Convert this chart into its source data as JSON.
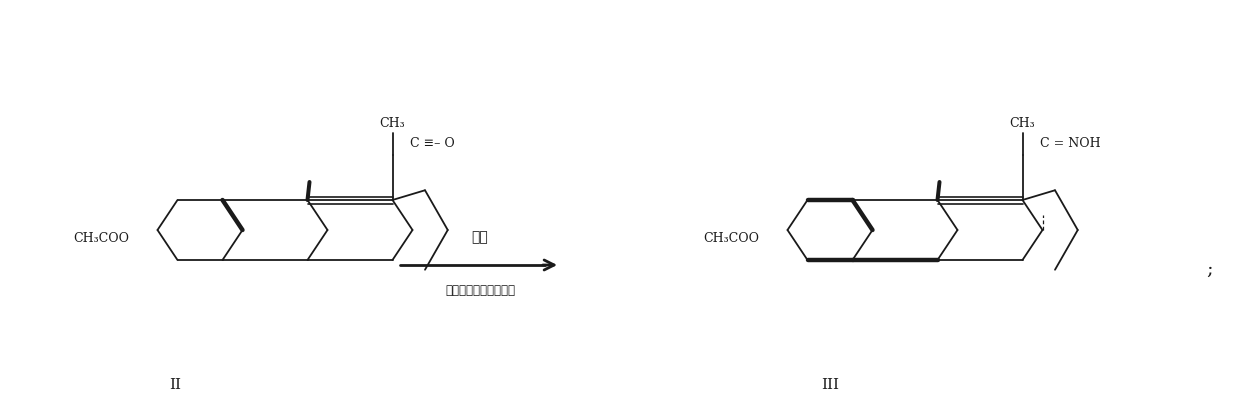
{
  "background_color": "#ffffff",
  "line_color": "#1a1a1a",
  "lw": 1.3,
  "blw": 3.2,
  "fig_width": 12.4,
  "fig_height": 4.15,
  "dpi": 100,
  "label_II": "II",
  "label_III": "III",
  "arrow_top": "肿化",
  "arrow_bottom": "乙醇、盐酸羟胺、吴吠",
  "mol1_ch3": "CH₃",
  "mol1_co": "C ≡– O",
  "mol1_ester": "CH₃COO",
  "mol2_ch3": "CH₃",
  "mol2_cnoh": "C = NOH",
  "mol2_ester": "CH₃COO",
  "semicolon": ";"
}
